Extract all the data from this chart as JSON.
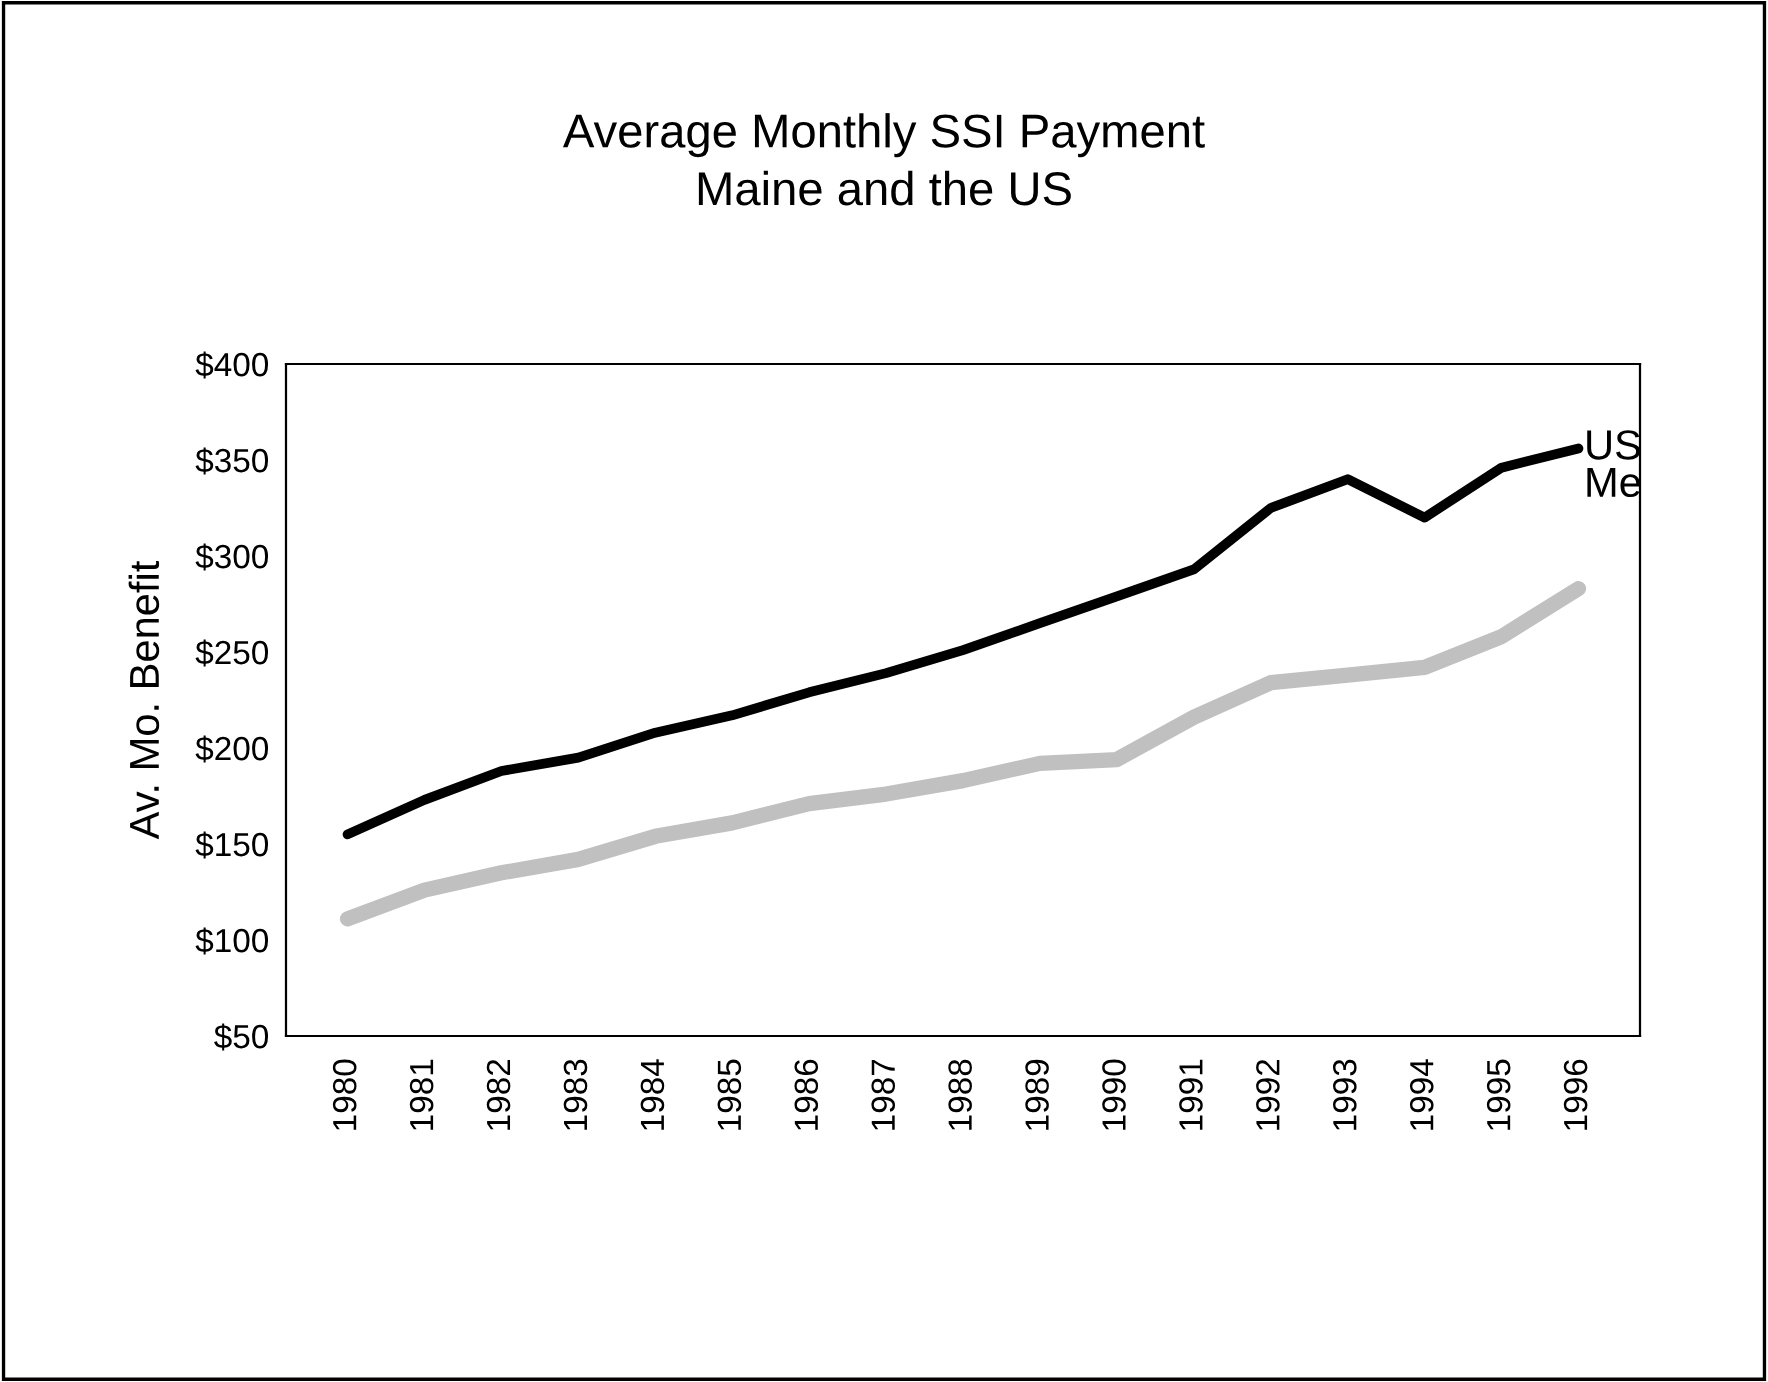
{
  "chart_data": {
    "type": "line",
    "title": "Average Monthly SSI Payment\nMaine and the US",
    "ylabel": "Av. Mo. Benefit",
    "categories": [
      "1980",
      "1981",
      "1982",
      "1983",
      "1984",
      "1985",
      "1986",
      "1987",
      "1988",
      "1989",
      "1990",
      "1991",
      "1992",
      "1993",
      "1994",
      "1995",
      "1996"
    ],
    "series": [
      {
        "name": "US",
        "color": "#000000",
        "values": [
          155,
          173,
          188,
          195,
          208,
          217,
          229,
          239,
          251,
          265,
          279,
          293,
          325,
          340,
          320,
          346,
          356
        ]
      },
      {
        "name": "Me",
        "color": "#c0c0c0",
        "values": [
          111,
          126,
          135,
          142,
          154,
          161,
          171,
          176,
          183,
          192,
          194,
          216,
          234,
          238,
          242,
          258,
          283
        ]
      }
    ],
    "ylim": [
      50,
      400
    ],
    "yticks": [
      {
        "value": 50,
        "label": "$50"
      },
      {
        "value": 100,
        "label": "$100"
      },
      {
        "value": 150,
        "label": "$150"
      },
      {
        "value": 200,
        "label": "$200"
      },
      {
        "value": 250,
        "label": "$250"
      },
      {
        "value": 300,
        "label": "$300"
      },
      {
        "value": 350,
        "label": "$350"
      },
      {
        "value": 400,
        "label": "$400"
      }
    ],
    "grid": false,
    "legend": false
  }
}
